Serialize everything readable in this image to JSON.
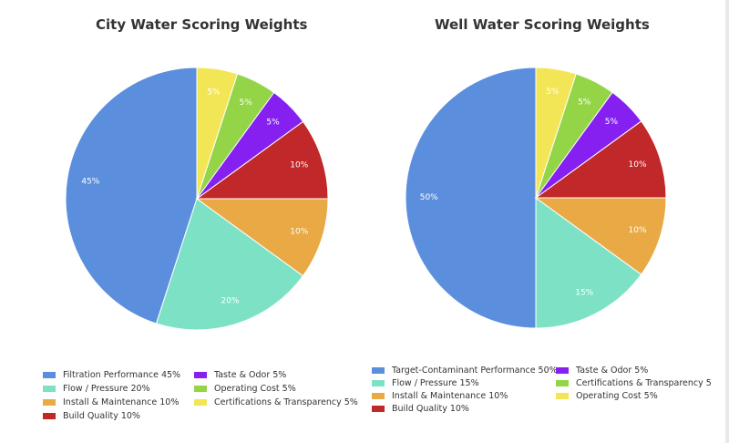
{
  "chart_data": [
    {
      "type": "pie",
      "title": "City Water Scoring Weights",
      "slices": [
        {
          "label": "Filtration Performance",
          "value": 45,
          "color": "#5b8fdd"
        },
        {
          "label": "Flow / Pressure",
          "value": 20,
          "color": "#7de2c5"
        },
        {
          "label": "Install & Maintenance",
          "value": 10,
          "color": "#e9a944"
        },
        {
          "label": "Build Quality",
          "value": 10,
          "color": "#c0282a"
        },
        {
          "label": "Taste & Odor",
          "value": 5,
          "color": "#8520f0"
        },
        {
          "label": "Operating Cost",
          "value": 5,
          "color": "#94d548"
        },
        {
          "label": "Certifications & Transparency",
          "value": 5,
          "color": "#f3e656"
        }
      ],
      "legend": [
        "Filtration Performance 45%",
        "Flow / Pressure 20%",
        "Install & Maintenance 10%",
        "Build Quality 10%",
        "Taste & Odor 5%",
        "Operating Cost 5%",
        "Certifications & Transparency 5%"
      ],
      "legend_placement": "bottom"
    },
    {
      "type": "pie",
      "title": "Well Water Scoring Weights",
      "slices": [
        {
          "label": "Target-Contaminant Performance",
          "value": 50,
          "color": "#5b8fdd"
        },
        {
          "label": "Flow / Pressure",
          "value": 15,
          "color": "#7de2c5"
        },
        {
          "label": "Install & Maintenance",
          "value": 10,
          "color": "#e9a944"
        },
        {
          "label": "Build Quality",
          "value": 10,
          "color": "#c0282a"
        },
        {
          "label": "Taste & Odor",
          "value": 5,
          "color": "#8520f0"
        },
        {
          "label": "Certifications & Transparency",
          "value": 5,
          "color": "#94d548"
        },
        {
          "label": "Operating Cost",
          "value": 5,
          "color": "#f3e656"
        }
      ],
      "legend": [
        "Target-Contaminant Performance 50%",
        "Flow / Pressure 15%",
        "Install & Maintenance 10%",
        "Build Quality 10%",
        "Taste & Odor 5%",
        "Certifications & Transparency 5",
        "Operating Cost 5%"
      ],
      "legend_placement": "bottom"
    }
  ]
}
